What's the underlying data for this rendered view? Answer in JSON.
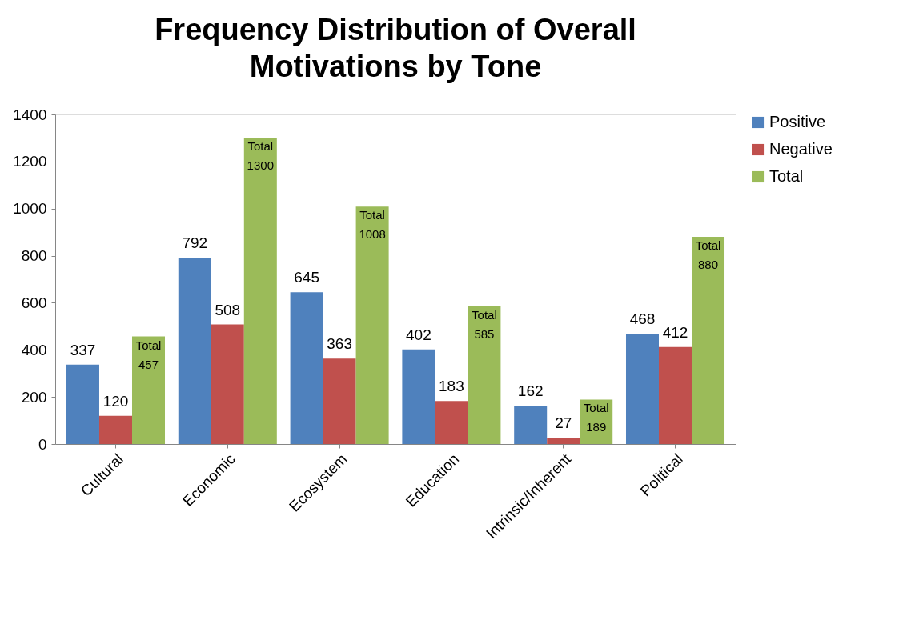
{
  "chart_data": {
    "type": "bar",
    "title": "Frequency Distribution of Overall Motivations by Tone",
    "categories": [
      "Cultural",
      "Economic",
      "Ecosystem",
      "Education",
      "Intrinsic/Inherent",
      "Political"
    ],
    "series": [
      {
        "name": "Positive",
        "color": "#4f81bd",
        "values": [
          337,
          792,
          645,
          402,
          162,
          468
        ],
        "value_labels": [
          "337",
          "792",
          "645",
          "402",
          "162",
          "468"
        ]
      },
      {
        "name": "Negative",
        "color": "#c0504d",
        "values": [
          120,
          508,
          363,
          183,
          27,
          412
        ],
        "value_labels": [
          "120",
          "508",
          "363",
          "183",
          "27",
          "412"
        ]
      },
      {
        "name": "Total",
        "color": "#9bbb59",
        "values": [
          457,
          1300,
          1008,
          585,
          189,
          880
        ],
        "value_labels": [
          "Total 457",
          "Total 1300",
          "Total 1008",
          "Total 585",
          "Total 189",
          "Total 880"
        ]
      }
    ],
    "ylim": [
      0,
      1400
    ],
    "yticks": [
      0,
      200,
      400,
      600,
      800,
      1000,
      1200,
      1400
    ],
    "grid": false,
    "legend": "right"
  }
}
